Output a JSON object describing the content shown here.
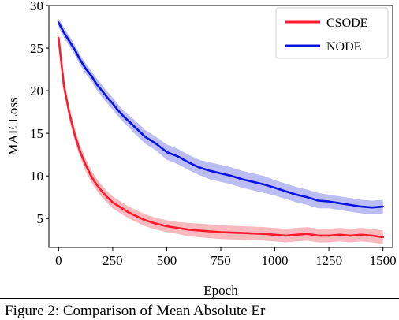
{
  "chart_data": {
    "type": "line",
    "xlabel": "Epoch",
    "ylabel": "MAE Loss",
    "xlim": [
      -45,
      1545
    ],
    "ylim": [
      1.6,
      30
    ],
    "xticks": [
      "0",
      "250",
      "500",
      "750",
      "1000",
      "1250",
      "1500"
    ],
    "yticks": [
      "5",
      "10",
      "15",
      "20",
      "25",
      "30"
    ],
    "legend_position": "top-right",
    "shaded_band": "yes",
    "grid": "off",
    "series": [
      {
        "name": "CSODE",
        "color": "#ff1a2e",
        "band_color": "#f4a3a8",
        "x": [
          0,
          25,
          50,
          75,
          100,
          125,
          150,
          175,
          200,
          225,
          250,
          275,
          300,
          325,
          350,
          375,
          400,
          450,
          500,
          550,
          600,
          650,
          700,
          750,
          800,
          850,
          900,
          950,
          1000,
          1050,
          1100,
          1150,
          1200,
          1250,
          1300,
          1350,
          1400,
          1450,
          1500
        ],
        "y": [
          26.2,
          20.5,
          17.3,
          14.8,
          12.8,
          11.3,
          10.0,
          9.0,
          8.2,
          7.5,
          6.9,
          6.5,
          6.1,
          5.7,
          5.4,
          5.1,
          4.8,
          4.4,
          4.1,
          3.9,
          3.7,
          3.6,
          3.5,
          3.4,
          3.35,
          3.3,
          3.25,
          3.2,
          3.1,
          3.0,
          3.1,
          3.2,
          3.0,
          3.0,
          3.1,
          3.0,
          3.1,
          3.0,
          2.8
        ],
        "band": [
          0.4,
          0.6,
          0.7,
          0.7,
          0.7,
          0.7,
          0.7,
          0.7,
          0.7,
          0.7,
          0.7,
          0.7,
          0.7,
          0.7,
          0.7,
          0.7,
          0.7,
          0.7,
          0.7,
          0.7,
          0.8,
          0.8,
          0.8,
          0.8,
          0.8,
          0.8,
          0.8,
          0.8,
          0.8,
          0.8,
          0.8,
          0.8,
          0.8,
          0.8,
          0.8,
          0.8,
          0.8,
          0.8,
          0.8
        ]
      },
      {
        "name": "NODE",
        "color": "#0a14e0",
        "band_color": "#a6a8ef",
        "x": [
          0,
          25,
          50,
          75,
          100,
          125,
          150,
          175,
          200,
          225,
          250,
          275,
          300,
          325,
          350,
          375,
          400,
          450,
          500,
          550,
          600,
          650,
          700,
          750,
          800,
          850,
          900,
          950,
          1000,
          1050,
          1100,
          1150,
          1200,
          1250,
          1300,
          1350,
          1400,
          1450,
          1500
        ],
        "y": [
          28.0,
          26.8,
          25.8,
          24.8,
          23.6,
          22.6,
          21.8,
          20.8,
          20.0,
          19.2,
          18.5,
          17.7,
          17.0,
          16.4,
          15.8,
          15.2,
          14.6,
          13.8,
          12.8,
          12.3,
          11.6,
          11.0,
          10.6,
          10.3,
          10.0,
          9.6,
          9.3,
          9.0,
          8.6,
          8.2,
          7.8,
          7.5,
          7.1,
          7.0,
          6.8,
          6.6,
          6.4,
          6.3,
          6.4
        ],
        "band": [
          0.5,
          0.6,
          0.6,
          0.6,
          0.6,
          0.6,
          0.6,
          0.7,
          0.7,
          0.7,
          0.7,
          0.7,
          0.7,
          0.7,
          0.8,
          0.8,
          0.8,
          0.8,
          0.9,
          0.9,
          0.9,
          0.9,
          1.0,
          1.0,
          1.0,
          1.0,
          1.0,
          1.0,
          0.9,
          0.9,
          0.9,
          0.9,
          0.9,
          0.8,
          0.8,
          0.8,
          0.8,
          0.8,
          0.8
        ]
      }
    ]
  },
  "caption": "Figure 2: Comparison of Mean Absolute Er"
}
